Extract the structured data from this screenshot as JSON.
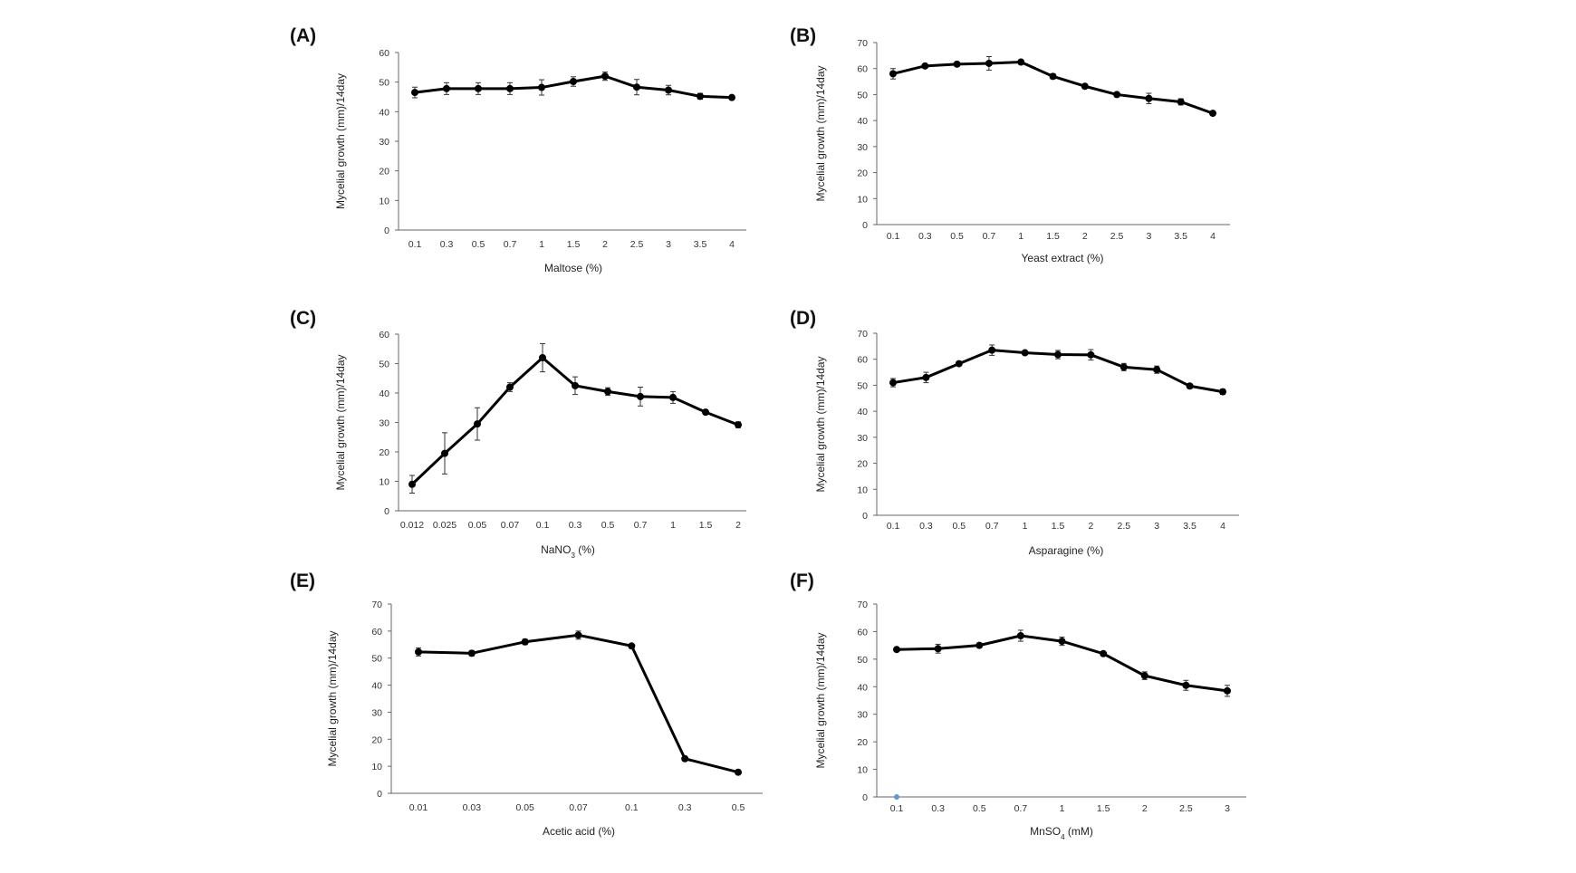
{
  "chart_data": [
    {
      "type": "line",
      "panel": "(A)",
      "xlabel": "Maltose (%)",
      "ylabel": "Mycelial growth (mm)/14day",
      "ylim": [
        0,
        60
      ],
      "yticks": [
        0,
        10,
        20,
        30,
        40,
        50,
        60
      ],
      "categories": [
        "0.1",
        "0.3",
        "0.5",
        "0.7",
        "1",
        "1.5",
        "2",
        "2.5",
        "3",
        "3.5",
        "4"
      ],
      "values": [
        46.5,
        47.8,
        47.8,
        47.8,
        48.2,
        50.2,
        52.0,
        48.3,
        47.3,
        45.2,
        44.8
      ],
      "errors": [
        1.8,
        2.0,
        2.0,
        2.0,
        2.6,
        1.6,
        1.4,
        2.6,
        1.6,
        1.0,
        0.6
      ]
    },
    {
      "type": "line",
      "panel": "(B)",
      "xlabel": "Yeast extract (%)",
      "ylabel": "Mycelial growth (mm)/14day",
      "ylim": [
        0,
        70
      ],
      "yticks": [
        0,
        10,
        20,
        30,
        40,
        50,
        60,
        70
      ],
      "categories": [
        "0.1",
        "0.3",
        "0.5",
        "0.7",
        "1",
        "1.5",
        "2",
        "2.5",
        "3",
        "3.5",
        "4"
      ],
      "values": [
        58.0,
        61.0,
        61.7,
        62.0,
        62.5,
        57.0,
        53.2,
        50.0,
        48.5,
        47.2,
        42.8
      ],
      "errors": [
        2.0,
        0.6,
        0.8,
        2.6,
        0.8,
        1.0,
        0.6,
        0.8,
        2.0,
        1.2,
        0.6
      ]
    },
    {
      "type": "line",
      "panel": "(C)",
      "xlabel": "NaNO3 (%)",
      "xlabel_main": "NaNO",
      "xlabel_sub": "3",
      "xlabel_unit": " (%)",
      "ylabel": "Mycelial growth (mm)/14day",
      "ylim": [
        0,
        60
      ],
      "yticks": [
        0,
        10,
        20,
        30,
        40,
        50,
        60
      ],
      "categories": [
        "0.012",
        "0.025",
        "0.05",
        "0.07",
        "0.1",
        "0.3",
        "0.5",
        "0.7",
        "1",
        "1.5",
        "2"
      ],
      "values": [
        9.0,
        19.5,
        29.5,
        42.0,
        52.0,
        42.5,
        40.5,
        38.8,
        38.5,
        33.5,
        29.2
      ],
      "errors": [
        3.0,
        7.0,
        5.5,
        1.5,
        4.8,
        3.0,
        1.3,
        3.2,
        2.0,
        0.5,
        1.0
      ]
    },
    {
      "type": "line",
      "panel": "(D)",
      "xlabel": "Asparagine (%)",
      "ylabel": "Mycelial growth (mm)/14day",
      "ylim": [
        0,
        70
      ],
      "yticks": [
        0,
        10,
        20,
        30,
        40,
        50,
        60,
        70
      ],
      "categories": [
        "0.1",
        "0.3",
        "0.5",
        "0.7",
        "1",
        "1.5",
        "2",
        "2.5",
        "3",
        "3.5",
        "4"
      ],
      "values": [
        51.0,
        53.0,
        58.3,
        63.5,
        62.5,
        61.8,
        61.7,
        57.0,
        56.0,
        49.7,
        47.5
      ],
      "errors": [
        1.6,
        2.0,
        0.8,
        2.0,
        0.6,
        1.6,
        2.0,
        1.4,
        1.4,
        0.8,
        1.0
      ]
    },
    {
      "type": "line",
      "panel": "(E)",
      "xlabel": "Acetic acid (%)",
      "ylabel": "Mycelial growth (mm)/14day",
      "ylim": [
        0,
        70
      ],
      "yticks": [
        0,
        10,
        20,
        30,
        40,
        50,
        60,
        70
      ],
      "categories": [
        "0.01",
        "0.03",
        "0.05",
        "0.07",
        "0.1",
        "0.3",
        "0.5"
      ],
      "values": [
        52.3,
        51.8,
        56.0,
        58.5,
        54.5,
        12.8,
        7.8
      ],
      "errors": [
        1.5,
        1.0,
        1.0,
        1.5,
        0.6,
        0.4,
        0.5
      ]
    },
    {
      "type": "line",
      "panel": "(F)",
      "xlabel": "MnSO4 (mM)",
      "xlabel_main": "MnSO",
      "xlabel_sub": "4",
      "xlabel_unit": " (mM)",
      "ylabel": "Mycelial growth (mm)/14day",
      "ylim": [
        0,
        70
      ],
      "yticks": [
        0,
        10,
        20,
        30,
        40,
        50,
        60,
        70
      ],
      "categories": [
        "0.1",
        "0.3",
        "0.5",
        "0.7",
        "1",
        "1.5",
        "2",
        "2.5",
        "3"
      ],
      "values": [
        53.5,
        53.8,
        55.0,
        58.5,
        56.5,
        52.0,
        44.0,
        40.5,
        38.5
      ],
      "errors": [
        0.6,
        1.6,
        0.8,
        2.0,
        1.5,
        0.6,
        1.4,
        1.8,
        2.0
      ],
      "marker_color": "#5b9bd5"
    }
  ]
}
